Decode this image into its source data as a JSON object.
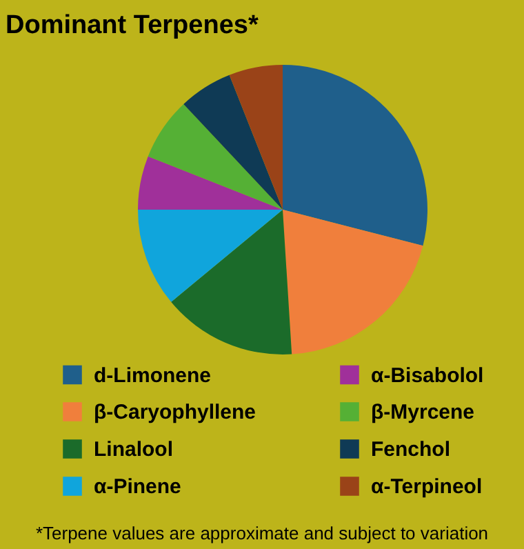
{
  "chart_data": {
    "type": "pie",
    "title": "Dominant Terpenes*",
    "categories": [
      "d-Limonene",
      "β-Caryophyllene",
      "Linalool",
      "α-Pinene",
      "α-Bisabolol",
      "β-Myrcene",
      "Fenchol",
      "α-Terpineol"
    ],
    "values": [
      29,
      20,
      15,
      11,
      6,
      7,
      6,
      6
    ],
    "colors": [
      "#1f5f8b",
      "#f07f3c",
      "#1b6b2a",
      "#10a5dc",
      "#a0309a",
      "#55b035",
      "#0f3a55",
      "#9a4318"
    ],
    "legend": "bottom",
    "annotations": [
      "*Terpene values are approximate and subject to variation"
    ]
  }
}
